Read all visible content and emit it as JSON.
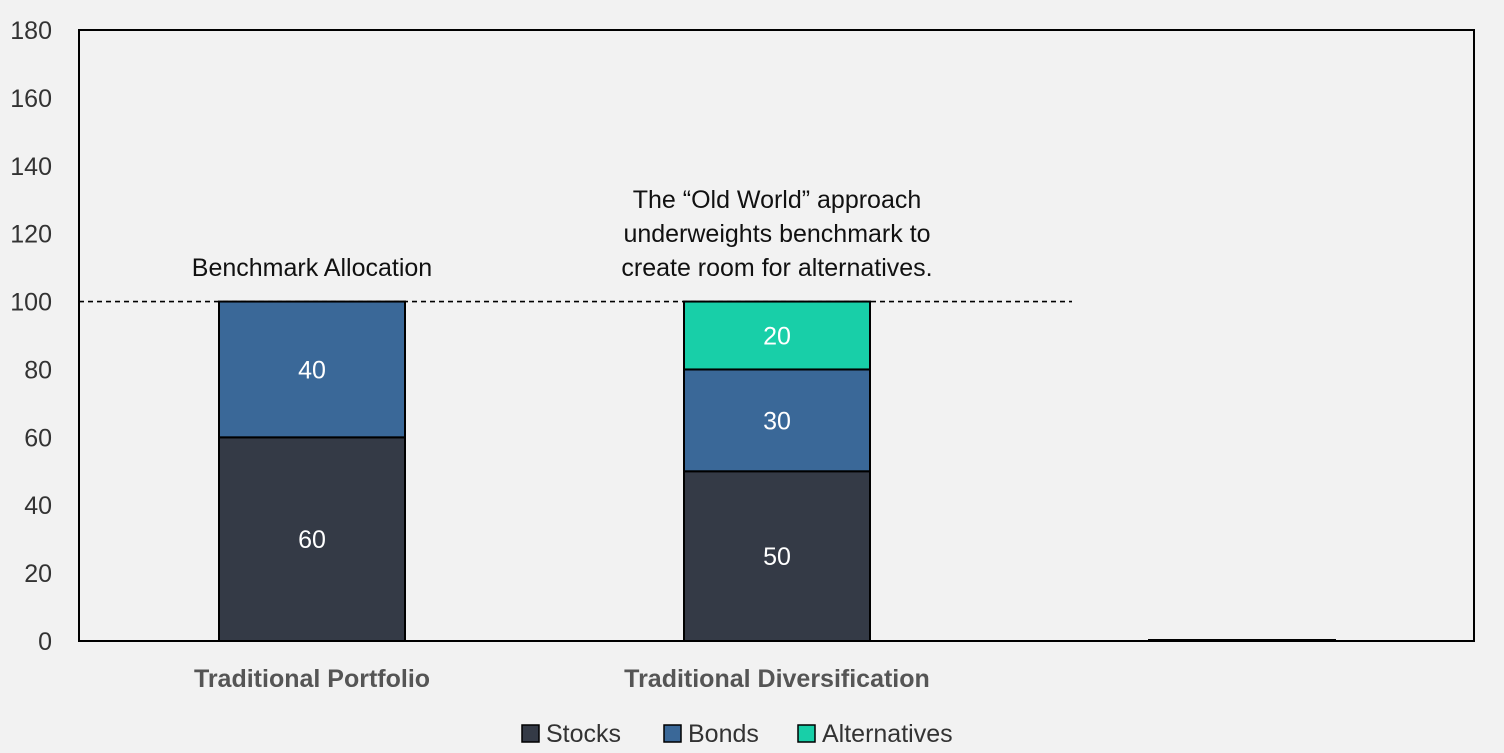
{
  "chart_data": {
    "type": "bar",
    "stacked": true,
    "categories": [
      "Traditional Portfolio",
      "Traditional Diversification",
      ""
    ],
    "series": [
      {
        "name": "Stocks",
        "values": [
          60,
          50,
          0
        ],
        "color": "#343a46"
      },
      {
        "name": "Bonds",
        "values": [
          40,
          30,
          0
        ],
        "color": "#3a6898"
      },
      {
        "name": "Alternatives",
        "values": [
          0,
          20,
          0
        ],
        "color": "#18cfa8"
      }
    ],
    "ylim": [
      0,
      180
    ],
    "yticks": [
      0,
      20,
      40,
      60,
      80,
      100,
      120,
      140,
      160,
      180
    ],
    "reference_line": {
      "y": 100,
      "style": "dashed"
    },
    "annotations": [
      {
        "category": "Traditional Portfolio",
        "lines": [
          "Benchmark Allocation"
        ]
      },
      {
        "category": "Traditional Diversification",
        "lines": [
          "The “Old World” approach",
          "underweights benchmark to",
          "create room for alternatives."
        ]
      }
    ],
    "legend": {
      "position": "bottom",
      "entries": [
        "Stocks",
        "Bonds",
        "Alternatives"
      ]
    },
    "grid": false,
    "title": "",
    "xlabel": "",
    "ylabel": ""
  }
}
